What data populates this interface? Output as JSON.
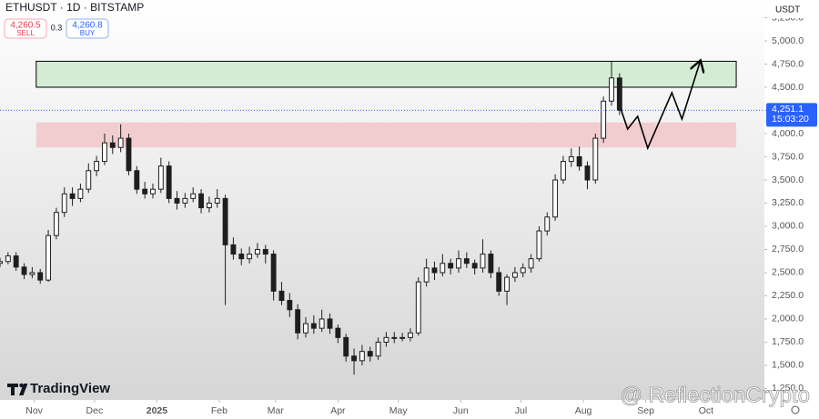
{
  "chart_data": {
    "type": "candlestick",
    "title": "ETHUSDT · 1D · BITSTAMP",
    "sell_price": "4,260.5",
    "sell_label": "SELL",
    "spread": "0.3",
    "buy_price": "4,260.8",
    "buy_label": "BUY",
    "currency": "USDT",
    "brand": "TradingView",
    "watermark": "@ ReflectionCrypto",
    "up_color": "#1e1e1e",
    "down_color": "#1e1e1e",
    "x": [
      0,
      4,
      8,
      12,
      16,
      20,
      24,
      28,
      32,
      36,
      40,
      44,
      48,
      52,
      56,
      60,
      64,
      68,
      72,
      76,
      80,
      84,
      88,
      92,
      96,
      100,
      104,
      108,
      112,
      116,
      120,
      124,
      128,
      132,
      136,
      140,
      144,
      148,
      152,
      156,
      160,
      164,
      168,
      172,
      176,
      180,
      184,
      188,
      192,
      196,
      200,
      204,
      208,
      212,
      216,
      220,
      224,
      228,
      232,
      236,
      240,
      244,
      248,
      252,
      256,
      260,
      264,
      268,
      272,
      276,
      280,
      284,
      288,
      292,
      296,
      300,
      304,
      308
    ],
    "open": [
      2600,
      2620,
      2680,
      2560,
      2480,
      2500,
      2420,
      2900,
      3150,
      3350,
      3300,
      3400,
      3600,
      3700,
      3900,
      3850,
      3950,
      3600,
      3400,
      3350,
      3400,
      3650,
      3300,
      3250,
      3300,
      3350,
      3200,
      3250,
      3300,
      2800,
      2700,
      2650,
      2700,
      2750,
      2700,
      2300,
      2200,
      2100,
      1850,
      1950,
      1900,
      2000,
      1900,
      1800,
      1600,
      1550,
      1650,
      1600,
      1750,
      1800,
      1800,
      1800,
      1850,
      2400,
      2550,
      2500,
      2600,
      2550,
      2650,
      2600,
      2550,
      2700,
      2500,
      2300,
      2450,
      2500,
      2550,
      2650,
      2950,
      3100,
      3500,
      3700,
      3750,
      3650,
      3500,
      3950,
      4350,
      4600
    ],
    "high": [
      2660,
      2720,
      2720,
      2600,
      2560,
      2540,
      2960,
      3200,
      3420,
      3420,
      3460,
      3680,
      3760,
      4000,
      3980,
      4100,
      4000,
      3650,
      3480,
      3460,
      3740,
      3700,
      3380,
      3360,
      3420,
      3400,
      3320,
      3400,
      3340,
      2880,
      2760,
      2780,
      2820,
      2800,
      2740,
      2400,
      2280,
      2160,
      2020,
      2040,
      2100,
      2060,
      1940,
      1840,
      1680,
      1720,
      1700,
      1800,
      1860,
      1860,
      1850,
      1900,
      2450,
      2650,
      2620,
      2700,
      2650,
      2740,
      2720,
      2640,
      2860,
      2740,
      2560,
      2480,
      2560,
      2600,
      2700,
      3000,
      3150,
      3560,
      3760,
      3840,
      3860,
      3700,
      4000,
      4400,
      4780,
      4650
    ],
    "low": [
      2560,
      2590,
      2520,
      2430,
      2440,
      2380,
      2400,
      2860,
      3100,
      3220,
      3260,
      3360,
      3540,
      3660,
      3780,
      3800,
      3550,
      3350,
      3300,
      3300,
      3360,
      3250,
      3180,
      3200,
      3260,
      3140,
      3150,
      3200,
      2150,
      2640,
      2580,
      2600,
      2660,
      2600,
      2200,
      2150,
      2020,
      1780,
      1800,
      1840,
      1860,
      1840,
      1740,
      1540,
      1400,
      1500,
      1540,
      1560,
      1700,
      1740,
      1760,
      1760,
      1820,
      2350,
      2420,
      2460,
      2480,
      2500,
      2550,
      2480,
      2500,
      2440,
      2250,
      2150,
      2400,
      2450,
      2500,
      2620,
      2900,
      3060,
      3460,
      3640,
      3600,
      3400,
      3460,
      3900,
      4300,
      4200
    ],
    "close": [
      2620,
      2680,
      2560,
      2480,
      2500,
      2420,
      2900,
      3150,
      3350,
      3300,
      3400,
      3600,
      3700,
      3900,
      3850,
      3950,
      3600,
      3400,
      3350,
      3400,
      3650,
      3300,
      3250,
      3300,
      3350,
      3200,
      3250,
      3300,
      2800,
      2700,
      2650,
      2700,
      2750,
      2700,
      2300,
      2200,
      2100,
      1850,
      1950,
      1900,
      2000,
      1900,
      1800,
      1600,
      1550,
      1650,
      1600,
      1750,
      1800,
      1800,
      1800,
      1850,
      2400,
      2550,
      2500,
      2600,
      2550,
      2650,
      2600,
      2550,
      2700,
      2500,
      2300,
      2450,
      2500,
      2550,
      2650,
      2950,
      3100,
      3500,
      3700,
      3750,
      3650,
      3500,
      3950,
      4350,
      4600,
      4251.1
    ],
    "last_price": {
      "value": 4251.1,
      "label": "4,251.1",
      "countdown": "15:03:20",
      "color": "#2962ff"
    },
    "zones": [
      {
        "x0": 18,
        "x1": 366,
        "y0": 4500,
        "y1": 4780,
        "color": "#d4ecd4"
      },
      {
        "x0": 18,
        "x1": 366,
        "y0": 3850,
        "y1": 4120,
        "color": "#f1cdd0"
      }
    ],
    "projection": {
      "x": [
        308.6,
        312,
        317,
        322,
        334,
        339,
        348
      ],
      "y": [
        4265,
        4049,
        4186,
        3843,
        4441,
        4157,
        4775
      ]
    },
    "xlim": [
      0,
      380
    ],
    "xticks": [
      {
        "value": 17,
        "label": "Nov"
      },
      {
        "value": 47,
        "label": "Dec"
      },
      {
        "value": 78,
        "label": "2025"
      },
      {
        "value": 109,
        "label": "Feb"
      },
      {
        "value": 137,
        "label": "Mar"
      },
      {
        "value": 168,
        "label": "Apr"
      },
      {
        "value": 198,
        "label": "May"
      },
      {
        "value": 229,
        "label": "Jun"
      },
      {
        "value": 259,
        "label": "Jul"
      },
      {
        "value": 290,
        "label": "Aug"
      },
      {
        "value": 321,
        "label": "Sep"
      },
      {
        "value": 351,
        "label": "Oct"
      }
    ],
    "ylim": [
      1127,
      5441
    ],
    "yticks": [
      {
        "value": 1250,
        "label": "1,250.0"
      },
      {
        "value": 1500,
        "label": "1,500.0"
      },
      {
        "value": 1750,
        "label": "1,750.0"
      },
      {
        "value": 2000,
        "label": "2,000.0"
      },
      {
        "value": 2250,
        "label": "2,250.0"
      },
      {
        "value": 2500,
        "label": "2,500.0"
      },
      {
        "value": 2750,
        "label": "2,750.0"
      },
      {
        "value": 3000,
        "label": "3,000.0"
      },
      {
        "value": 3250,
        "label": "3,250.0"
      },
      {
        "value": 3500,
        "label": "3,500.0"
      },
      {
        "value": 3750,
        "label": "3,750.0"
      },
      {
        "value": 4000,
        "label": "4,000.0"
      },
      {
        "value": 4250,
        "label": "4,250.0"
      },
      {
        "value": 4500,
        "label": "4,500.0"
      },
      {
        "value": 4750,
        "label": "4,750.0"
      },
      {
        "value": 5000,
        "label": "5,000.0"
      },
      {
        "value": 5250,
        "label": "5,250.0"
      }
    ]
  }
}
